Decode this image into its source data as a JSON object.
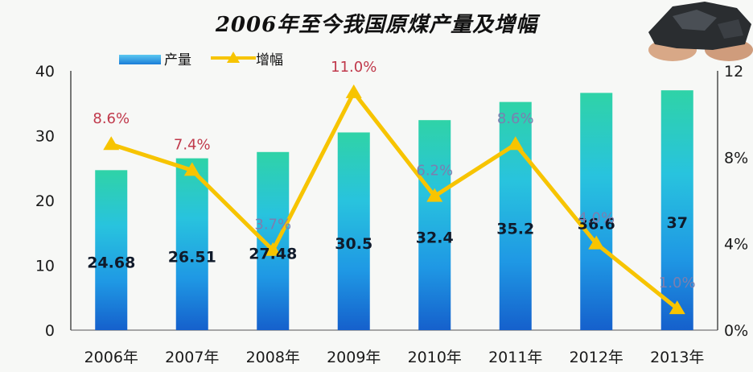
{
  "chart_data": {
    "type": "bar+line",
    "title": "2006年至今我国原煤产量及增幅",
    "categories": [
      "2006年",
      "2007年",
      "2008年",
      "2009年",
      "2010年",
      "2011年",
      "2012年",
      "2013年"
    ],
    "series": [
      {
        "name": "产量",
        "type": "bar",
        "axis": "left",
        "values": [
          24.68,
          26.51,
          27.48,
          30.5,
          32.4,
          35.2,
          36.6,
          37
        ],
        "labels": [
          "24.68",
          "26.51",
          "27.48",
          "30.5",
          "32.4",
          "35.2",
          "36.6",
          "37"
        ]
      },
      {
        "name": "增幅",
        "type": "line",
        "axis": "right",
        "values": [
          8.6,
          7.4,
          3.7,
          11.0,
          6.2,
          8.6,
          4.0,
          1.0
        ],
        "labels": [
          "8.6%",
          "7.4%",
          "3.7%",
          "11.0%",
          "6.2%",
          "8.6%",
          "4.0%",
          "1.0%"
        ]
      }
    ],
    "y_left": {
      "range": [
        0,
        40
      ],
      "ticks": [
        "0",
        "10",
        "20",
        "30",
        "40"
      ],
      "tick_values": [
        0,
        10,
        20,
        30,
        40
      ]
    },
    "y_right": {
      "range": [
        0,
        12
      ],
      "ticks": [
        "0%",
        "4%",
        "8%",
        "12"
      ],
      "tick_values": [
        0,
        4,
        8,
        12
      ]
    },
    "legend_position": "top-left",
    "grid": false,
    "colors": {
      "bar_top": "#2fd3a7",
      "bar_mid": "#28b8e8",
      "bar_bottom": "#1560cc",
      "line": "#f7c400",
      "label_red": "#c0394b",
      "label_gray": "#7b7fb0",
      "label_dark": "#101a2a"
    }
  }
}
